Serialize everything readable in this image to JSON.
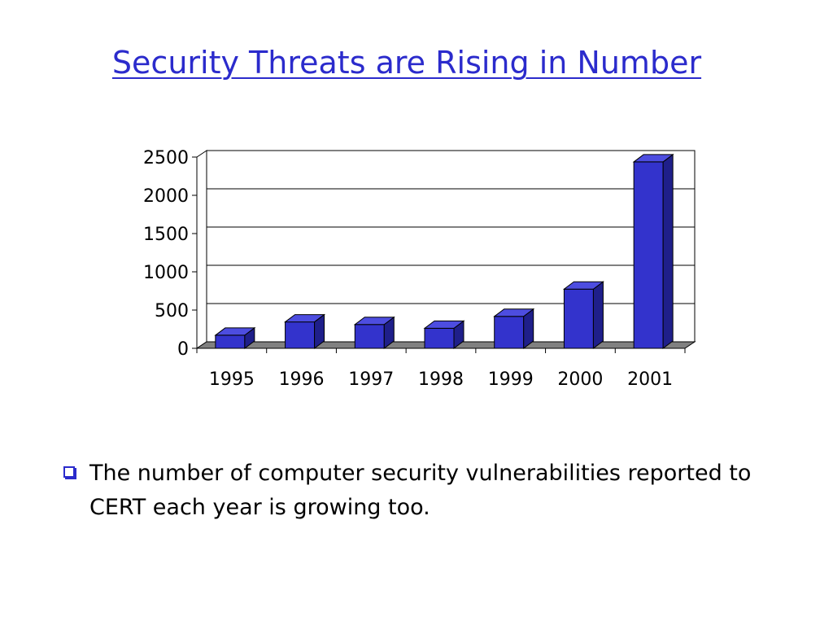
{
  "slide": {
    "title": "Security Threats are Rising in Number",
    "bullet": "The number of computer security vulnerabilities reported to CERT each year is growing too."
  },
  "colors": {
    "title": "#2b2bcc",
    "bar_front": "#3333cc",
    "bar_top": "#4d4de0",
    "bar_side": "#1f1f8a",
    "floor": "#808080"
  },
  "chart_data": {
    "type": "bar",
    "categories": [
      "1995",
      "1996",
      "1997",
      "1998",
      "1999",
      "2000",
      "2001"
    ],
    "values": [
      171,
      345,
      311,
      262,
      417,
      774,
      2437
    ],
    "title": "",
    "xlabel": "",
    "ylabel": "",
    "ylim": [
      0,
      2500
    ],
    "yticks": [
      "0",
      "500",
      "1000",
      "1500",
      "2000",
      "2500"
    ],
    "grid": true,
    "legend": false
  }
}
